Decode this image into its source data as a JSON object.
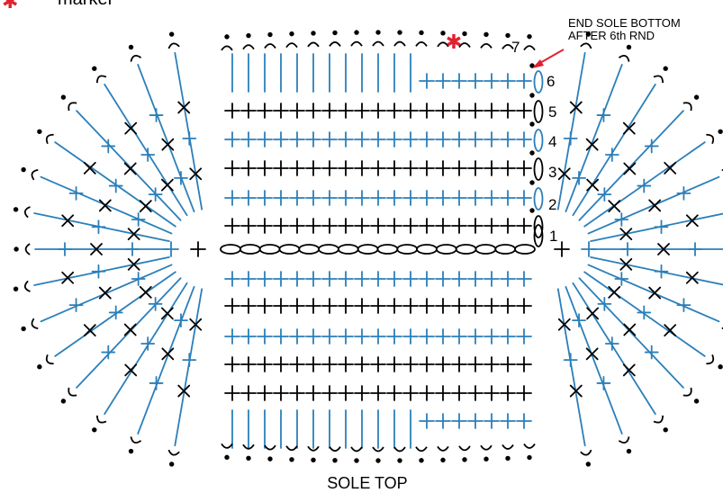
{
  "legend": {
    "marker_label": "marker"
  },
  "annotation": {
    "line1": "END SOLE BOTTOM",
    "line2": "AFTER 6th RND"
  },
  "round_labels": [
    "1",
    "2",
    "3",
    "4",
    "5",
    "6",
    "7"
  ],
  "caption": "SOLE TOP",
  "colors": {
    "black": "#000000",
    "blue": "#2b7fba",
    "marker": "#e0212e"
  }
}
